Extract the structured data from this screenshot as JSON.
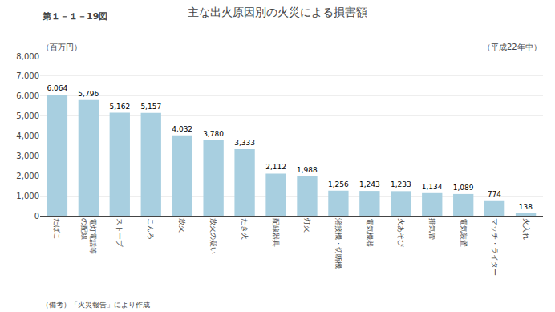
{
  "chart_data": {
    "type": "bar",
    "title": "主な出火原因別の火災による損害額",
    "subtitle": "（平成22年中）",
    "ylabel": "（百万円）",
    "annotations": [
      "第１－１－19図",
      "（備考）「火災報告」により作成"
    ],
    "categories": [
      "たばこ",
      "電灯電話等\nの配線",
      "ストーブ",
      "こんろ",
      "放火",
      "放火の疑い",
      "たき火",
      "配線器具",
      "灯火",
      "溶接機・切断機",
      "電気機器",
      "火あそび",
      "排気管",
      "電気装置",
      "マッチ・ライター",
      "火入れ"
    ],
    "values": [
      6064,
      5796,
      5162,
      5157,
      4032,
      3780,
      3333,
      2112,
      1988,
      1256,
      1243,
      1233,
      1134,
      1089,
      774,
      138
    ],
    "value_labels": [
      "6,064",
      "5,796",
      "5,162",
      "5,157",
      "4,032",
      "3,780",
      "3,333",
      "2,112",
      "1,988",
      "1,256",
      "1,243",
      "1,233",
      "1,134",
      "1,089",
      "774",
      "138"
    ],
    "data_labels": true,
    "color": "#a8cfe0",
    "ylim": [
      0,
      8000
    ],
    "yticks": [
      0,
      {
        "value": 1000,
        "label": "1,000"
      },
      {
        "value": 2000,
        "label": "2,000"
      },
      {
        "value": 3000,
        "label": "3,000"
      },
      {
        "value": 4000,
        "label": "4,000"
      },
      {
        "value": 5000,
        "label": "5,000"
      },
      {
        "value": 6000,
        "label": "6,000"
      },
      {
        "value": 7000,
        "label": "7,000"
      },
      {
        "value": 8000,
        "label": "8,000"
      }
    ],
    "grid": true
  }
}
